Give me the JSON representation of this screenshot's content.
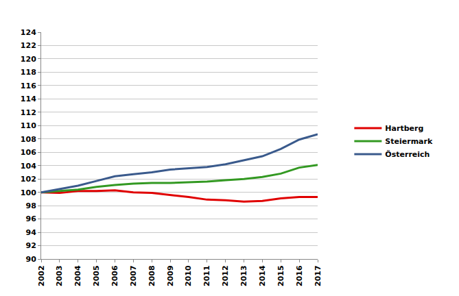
{
  "chart_data": {
    "type": "line",
    "x": [
      2002,
      2003,
      2004,
      2005,
      2006,
      2007,
      2008,
      2009,
      2010,
      2011,
      2012,
      2013,
      2014,
      2015,
      2016,
      2017
    ],
    "series": [
      {
        "name": "Hartberg",
        "color": "#e00000",
        "values": [
          100,
          99.9,
          100.2,
          100.2,
          100.3,
          100.0,
          99.9,
          99.6,
          99.3,
          98.9,
          98.8,
          98.6,
          98.7,
          99.1,
          99.3,
          99.3
        ]
      },
      {
        "name": "Steiermark",
        "color": "#339922",
        "values": [
          100,
          100.2,
          100.4,
          100.8,
          101.1,
          101.3,
          101.4,
          101.4,
          101.5,
          101.6,
          101.8,
          102.0,
          102.3,
          102.8,
          103.7,
          104.1
        ]
      },
      {
        "name": "Österreich",
        "color": "#3a5a8c",
        "values": [
          100,
          100.5,
          101.0,
          101.7,
          102.4,
          102.7,
          103.0,
          103.4,
          103.6,
          103.8,
          104.2,
          104.8,
          105.4,
          106.5,
          107.9,
          108.7
        ]
      }
    ],
    "xlim": [
      2002,
      2017
    ],
    "xticks": [
      2002,
      2003,
      2004,
      2005,
      2006,
      2007,
      2008,
      2009,
      2010,
      2011,
      2012,
      2013,
      2014,
      2015,
      2016,
      2017
    ],
    "ylim": [
      90,
      124
    ],
    "yticks": [
      90,
      92,
      94,
      96,
      98,
      100,
      102,
      104,
      106,
      108,
      110,
      112,
      114,
      116,
      118,
      120,
      122,
      124
    ],
    "grid": true,
    "legend": "right"
  }
}
